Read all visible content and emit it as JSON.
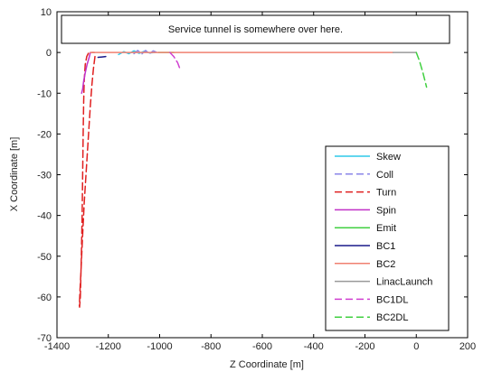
{
  "chart_data": {
    "type": "line",
    "title": "",
    "xlabel": "Z Coordinate [m]",
    "ylabel": "X Coordinate [m]",
    "xlim": [
      -1400,
      200
    ],
    "ylim": [
      -70,
      10
    ],
    "xticks": [
      -1400,
      -1200,
      -1000,
      -800,
      -600,
      -400,
      -200,
      0,
      200
    ],
    "yticks": [
      10,
      0,
      -10,
      -20,
      -30,
      -40,
      -50,
      -60,
      -70
    ],
    "xtick_labels": [
      "-1400",
      "-1200",
      "-1000",
      "-800",
      "-600",
      "-400",
      "-200",
      "0",
      "200"
    ],
    "ytick_labels": [
      "10",
      "0",
      "-10",
      "-20",
      "-30",
      "-40",
      "-50",
      "-60",
      "-70"
    ],
    "grid": false,
    "legend_position": "bottom-right",
    "annotation": "Service tunnel is somewhere over here.",
    "series": [
      {
        "name": "Skew",
        "color": "#2ec8e8",
        "dash": "solid",
        "x": [
          -1160,
          -1140,
          -1120,
          -1100,
          -1080,
          -1060,
          -1040,
          -1020
        ],
        "y": [
          -0.5,
          0.2,
          -0.3,
          0.4,
          -0.2,
          0.3,
          -0.1,
          0
        ]
      },
      {
        "name": "Coll",
        "color": "#8a84e8",
        "dash": "dashed",
        "x": [
          -1100,
          -1085,
          -1070,
          -1055,
          -1040,
          -1025,
          -1010
        ],
        "y": [
          -0.3,
          0.5,
          -0.4,
          0.5,
          -0.3,
          0.4,
          0
        ]
      },
      {
        "name": "Turn",
        "color": "#e02020",
        "dash": "dashed",
        "x": [
          -1252,
          -1258,
          -1264,
          -1270,
          -1277,
          -1285,
          -1294,
          -1301,
          -1306,
          -1310,
          -1312,
          -1313,
          -1312,
          -1309,
          -1305,
          -1302,
          -1300,
          -1298,
          -1296,
          -1294,
          -1290,
          -1284,
          -1276,
          -1268,
          -1260,
          -1254
        ],
        "y": [
          -1,
          -4,
          -8,
          -13,
          -20,
          -28,
          -37,
          -46,
          -53,
          -58,
          -61,
          -62,
          -62.5,
          -60,
          -50,
          -40,
          -30,
          -20,
          -12,
          -7,
          -3,
          -1,
          0,
          0,
          0,
          0
        ]
      },
      {
        "name": "Spin",
        "color": "#c030c8",
        "dash": "solid",
        "x": [
          -1270,
          -1276,
          -1283,
          -1290,
          -1296,
          -1300,
          -1304
        ],
        "y": [
          0,
          -1.5,
          -3,
          -5,
          -7,
          -9,
          -10
        ]
      },
      {
        "name": "Emit",
        "color": "#40d040",
        "dash": "solid",
        "x": [
          -1005,
          -975,
          -945
        ],
        "y": [
          0,
          0,
          0
        ]
      },
      {
        "name": "BC1",
        "color": "#1a1a8a",
        "dash": "solid",
        "x": [
          -1240,
          -1225,
          -1210
        ],
        "y": [
          -1.2,
          -1.1,
          -1.0
        ]
      },
      {
        "name": "BC2",
        "color": "#f08070",
        "dash": "solid",
        "x": [
          -1270,
          -900,
          -600,
          -300,
          -90
        ],
        "y": [
          0,
          0,
          0,
          0,
          0
        ]
      },
      {
        "name": "LinacLaunch",
        "color": "#9a9a9a",
        "dash": "solid",
        "x": [
          -90,
          -30,
          0
        ],
        "y": [
          0,
          0,
          0
        ]
      },
      {
        "name": "BC1DL",
        "color": "#d040d0",
        "dash": "dashed",
        "x": [
          -960,
          -945,
          -930,
          -918
        ],
        "y": [
          0,
          -1,
          -2.5,
          -4.5
        ]
      },
      {
        "name": "BC2DL",
        "color": "#40d040",
        "dash": "dashed",
        "x": [
          0,
          12,
          26,
          40
        ],
        "y": [
          0,
          -2,
          -5,
          -8.5
        ]
      }
    ]
  }
}
